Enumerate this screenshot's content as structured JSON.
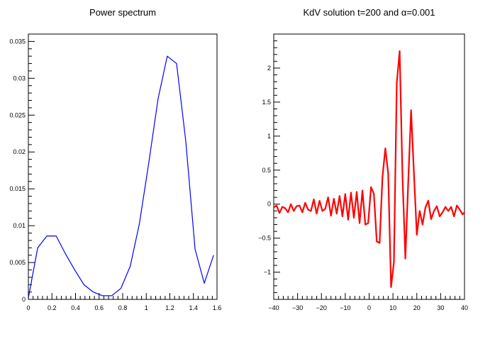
{
  "chart_data": [
    {
      "type": "line",
      "title": "Power spectrum",
      "xlabel": "",
      "ylabel": "",
      "xlim": [
        0,
        1.6
      ],
      "ylim": [
        0,
        0.036
      ],
      "x_ticks": [
        0,
        0.2,
        0.4,
        0.6,
        0.8,
        1,
        1.2,
        1.4,
        1.6
      ],
      "x_tick_labels": [
        "0",
        "0.2",
        "0.4",
        "0.6",
        "0.8",
        "1",
        "1.2",
        "1.4",
        "1.6"
      ],
      "y_ticks": [
        0,
        0.005,
        0.01,
        0.015,
        0.02,
        0.025,
        0.03,
        0.035
      ],
      "y_tick_labels": [
        "0",
        "0.005",
        "0.01",
        "0.015",
        "0.02",
        "0.025",
        "0.03",
        "0.035"
      ],
      "grid": false,
      "line_color": "#0000ff",
      "series": [
        {
          "x": [
            0,
            0.079,
            0.157,
            0.236,
            0.314,
            0.393,
            0.471,
            0.55,
            0.628,
            0.707,
            0.785,
            0.864,
            0.942,
            1.021,
            1.1,
            1.178,
            1.257,
            1.335,
            1.414,
            1.492,
            1.571
          ],
          "y": [
            0.0002,
            0.007,
            0.0086,
            0.0086,
            0.0062,
            0.004,
            0.002,
            0.001,
            0.0005,
            0.0005,
            0.0015,
            0.0045,
            0.0103,
            0.0185,
            0.0272,
            0.033,
            0.032,
            0.0215,
            0.0068,
            0.0022,
            0.006
          ]
        }
      ]
    },
    {
      "type": "line",
      "title": "KdV solution t=200 and α=0.001",
      "xlabel": "",
      "ylabel": "",
      "xlim": [
        -40,
        40
      ],
      "ylim": [
        -1.4,
        2.5
      ],
      "x_ticks": [
        -40,
        -30,
        -20,
        -10,
        0,
        10,
        20,
        30,
        40
      ],
      "x_tick_labels": [
        "−40",
        "−30",
        "−20",
        "−10",
        "0",
        "10",
        "20",
        "30",
        "40"
      ],
      "y_ticks": [
        -1,
        -0.5,
        0,
        0.5,
        1,
        1.5,
        2
      ],
      "y_tick_labels": [
        "−1",
        "−0.5",
        "0",
        "0.5",
        "1",
        "1.5",
        "2"
      ],
      "grid": false,
      "line_color": "#ff0000",
      "series": [
        {
          "x": [
            -40,
            -38.8,
            -37.6,
            -36.4,
            -35.2,
            -34,
            -32.8,
            -31.6,
            -30.4,
            -29.2,
            -28,
            -26.8,
            -25.6,
            -24.4,
            -23.2,
            -22,
            -20.8,
            -19.6,
            -18.4,
            -17.2,
            -16,
            -14.8,
            -13.6,
            -12.4,
            -11.2,
            -10,
            -8.8,
            -7.6,
            -6.4,
            -5.2,
            -4,
            -2.8,
            -1.6,
            -0.4,
            0.8,
            2,
            3.2,
            4.4,
            5.6,
            6.8,
            8,
            9.2,
            10.4,
            11.6,
            12.8,
            14,
            15.2,
            16.4,
            17.6,
            18.8,
            20,
            21.2,
            22.4,
            23.6,
            24.8,
            26,
            27.2,
            28.4,
            29.6,
            30.8,
            32,
            33.2,
            34.4,
            35.6,
            36.8,
            38,
            39.2,
            40
          ],
          "y": [
            -0.05,
            -0.02,
            -0.13,
            -0.04,
            -0.06,
            -0.12,
            0.0,
            -0.1,
            -0.03,
            -0.02,
            -0.12,
            0.02,
            -0.08,
            -0.1,
            0.07,
            -0.14,
            0.05,
            -0.1,
            -0.07,
            0.1,
            -0.17,
            0.08,
            -0.14,
            0.12,
            -0.18,
            0.15,
            -0.23,
            0.17,
            -0.2,
            0.18,
            -0.28,
            0.2,
            -0.3,
            -0.28,
            0.25,
            0.15,
            -0.55,
            -0.57,
            0.4,
            0.82,
            0.45,
            -1.22,
            -0.85,
            1.78,
            2.25,
            0.4,
            -0.8,
            0.32,
            1.38,
            0.45,
            -0.45,
            -0.1,
            -0.3,
            -0.05,
            0.05,
            -0.22,
            -0.1,
            -0.03,
            -0.18,
            -0.12,
            -0.04,
            -0.1,
            -0.04,
            -0.18,
            -0.02,
            -0.08,
            -0.15,
            -0.12
          ]
        }
      ]
    }
  ]
}
